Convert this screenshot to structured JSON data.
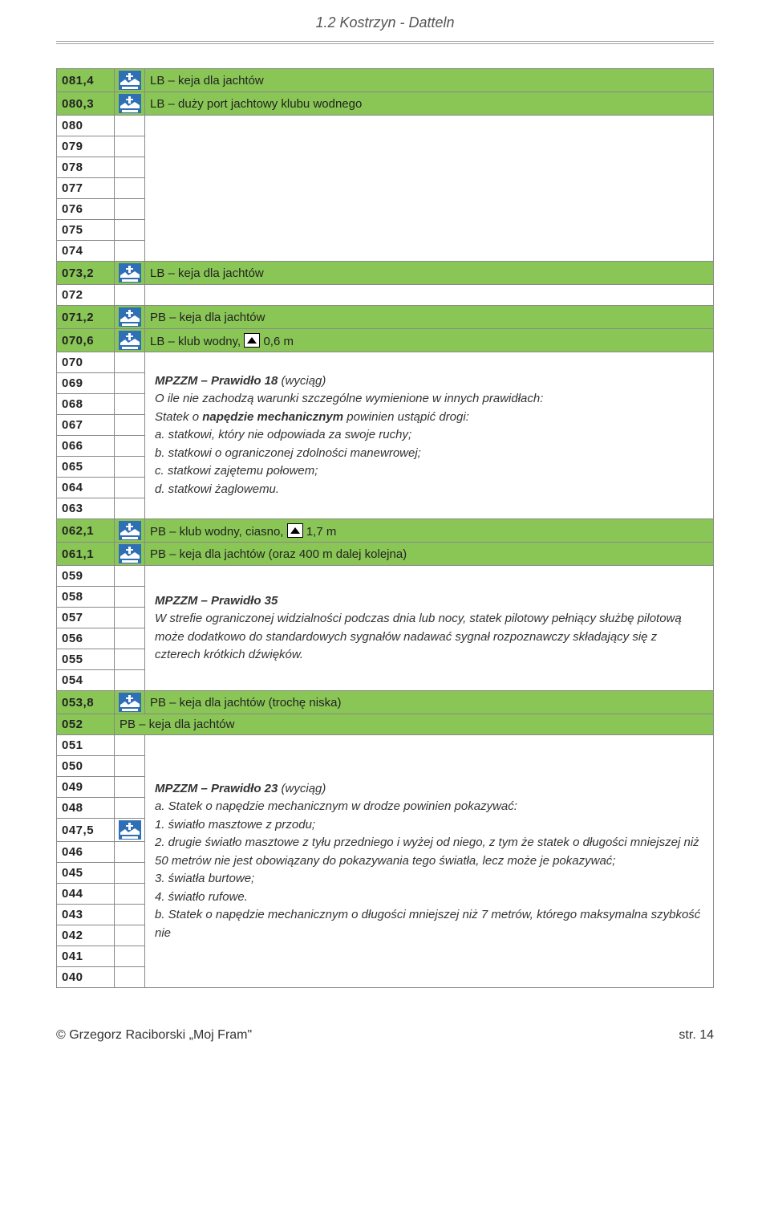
{
  "doc": {
    "title": "1.2 Kostrzyn - Datteln",
    "footer_left": "© Grzegorz Raciborski „Moj Fram\"",
    "footer_right": "str. 14"
  },
  "colors": {
    "green": "#8ac656",
    "note_bg": "#e6e6e6",
    "border": "#888888",
    "icon_blue": "#2f6fb5",
    "icon_depth_border": "#000000",
    "icon_depth_fill": "#ffffff"
  },
  "rows": [
    {
      "km": "081,4",
      "icon": "berth",
      "desc": "LB – keja dla jachtów",
      "style": "green"
    },
    {
      "km": "080,3",
      "icon": "berth",
      "desc": "LB – duży port jachtowy klubu wodnego",
      "style": "green"
    },
    {
      "km": "080",
      "style": "plain",
      "group": "g1",
      "group_rows": 7
    },
    {
      "km": "079",
      "style": "plain",
      "group": "g1"
    },
    {
      "km": "078",
      "style": "plain",
      "group": "g1"
    },
    {
      "km": "077",
      "style": "plain",
      "group": "g1"
    },
    {
      "km": "076",
      "style": "plain",
      "group": "g1"
    },
    {
      "km": "075",
      "style": "plain",
      "group": "g1"
    },
    {
      "km": "074",
      "style": "plain",
      "group": "g1"
    },
    {
      "km": "073,2",
      "icon": "berth",
      "desc": "LB – keja dla jachtów",
      "style": "green"
    },
    {
      "km": "072",
      "style": "plain",
      "group": "g2",
      "group_rows": 1
    },
    {
      "km": "071,2",
      "icon": "berth",
      "desc": "PB – keja dla jachtów",
      "style": "green"
    },
    {
      "km": "070,6",
      "icon": "berth",
      "desc_html": "LB – klub wodny, {DEPTH} 0,6 m",
      "style": "green"
    },
    {
      "km": "070",
      "style": "plain",
      "note": "note_a",
      "note_rows": 8
    },
    {
      "km": "069",
      "style": "plain"
    },
    {
      "km": "068",
      "style": "plain"
    },
    {
      "km": "067",
      "style": "plain"
    },
    {
      "km": "066",
      "style": "plain"
    },
    {
      "km": "065",
      "style": "plain"
    },
    {
      "km": "064",
      "style": "plain"
    },
    {
      "km": "063",
      "style": "plain"
    },
    {
      "km": "062,1",
      "icon": "berth",
      "desc_html": "PB – klub wodny, ciasno, {DEPTH} 1,7 m",
      "style": "green"
    },
    {
      "km": "061,1",
      "icon": "berth",
      "desc": "PB – keja dla jachtów (oraz 400 m dalej kolejna)",
      "style": "green"
    },
    {
      "km": "059",
      "style": "plain",
      "note": "note_b",
      "note_rows": 6
    },
    {
      "km": "058",
      "style": "plain"
    },
    {
      "km": "057",
      "style": "plain"
    },
    {
      "km": "056",
      "style": "plain"
    },
    {
      "km": "055",
      "style": "plain"
    },
    {
      "km": "054",
      "style": "plain"
    },
    {
      "km": "053,8",
      "icon": "berth",
      "desc": "PB – keja dla jachtów (trochę niska)",
      "style": "green"
    },
    {
      "km": "052",
      "desc": "PB – keja dla jachtów",
      "style": "green",
      "nocol2": true
    },
    {
      "km": "051",
      "style": "plain",
      "note": "note_c",
      "note_rows": 12
    },
    {
      "km": "050",
      "style": "plain"
    },
    {
      "km": "049",
      "style": "plain"
    },
    {
      "km": "048",
      "style": "plain"
    },
    {
      "km": "047,5",
      "icon": "berth",
      "style": "plain-icon"
    },
    {
      "km": "046",
      "style": "plain"
    },
    {
      "km": "045",
      "style": "plain"
    },
    {
      "km": "044",
      "style": "plain"
    },
    {
      "km": "043",
      "style": "plain"
    },
    {
      "km": "042",
      "style": "plain"
    },
    {
      "km": "041",
      "style": "plain"
    },
    {
      "km": "040",
      "style": "plain"
    }
  ],
  "notes": {
    "note_a": "<span class='bi'>MPZZM – Prawidło 18</span> <i>(wyciąg)</i><br>O ile nie zachodzą warunki szczególne wymienione w innych prawidłach:<br>Statek o <b>napędzie mechanicznym</b> powinien ustąpić drogi:<br>a. statkowi, który nie odpowiada za swoje ruchy;<br>b. statkowi o ograniczonej zdolności manewrowej;<br>c. statkowi zajętemu połowem;<br>d. statkowi żaglowemu.",
    "note_b": "<span class='bi'>MPZZM – Prawidło 35</span><br>W strefie ograniczonej widzialności podczas dnia lub nocy, statek pilotowy pełniący służbę pilotową może dodatkowo do standardowych sygnałów  nadawać sygnał rozpoznawczy składający się z czterech krótkich dźwięków.",
    "note_c": "<span class='bi'>MPZZM – Prawidło 23</span> <i>(wyciąg)</i><br>a. Statek o napędzie mechanicznym w drodze powinien pokazywać:<br>1. światło masztowe z przodu;<br>2. drugie światło masztowe z tyłu przedniego i wyżej od niego, z tym że statek o długości mniejszej niż 50 metrów nie jest obowiązany do pokazywania tego światła, lecz może je pokazywać;<br>3. światła burtowe;<br>4. światło rufowe.<br>b. Statek o napędzie mechanicznym o długości mniejszej niż 7 metrów, którego maksymalna szybkość nie"
  }
}
